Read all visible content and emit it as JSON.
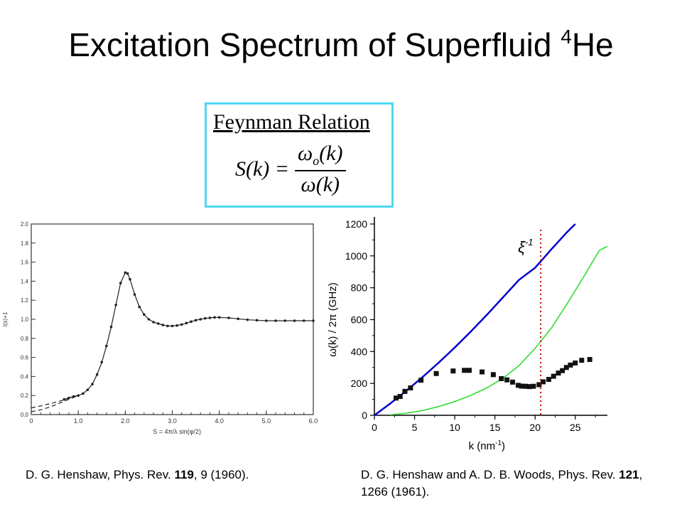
{
  "title": {
    "main": "Excitation Spectrum of Superfluid ",
    "sup": "4",
    "suffix": "He"
  },
  "feynman": {
    "label": "Feynman Relation",
    "lhs": "S(k) =",
    "num_main": "ω",
    "num_sub": "o",
    "num_arg": "(k)",
    "den": "ω(k)"
  },
  "captions": {
    "left": {
      "pre": "D. G. Henshaw, Phys. Rev. ",
      "bold": "119",
      "post": ", 9 (1960)."
    },
    "right": {
      "pre": "D. G. Henshaw and A. D. B. Woods, Phys. Rev. ",
      "bold": "121",
      "post": ", 1266 (1961)."
    }
  },
  "chart_data": [
    {
      "type": "line",
      "xlabel": "S = 4π/λ sin(φ/2)",
      "ylabel": "I(s)+1",
      "xlim": [
        0,
        6.0
      ],
      "ylim": [
        0,
        2.0
      ],
      "x_ticks": [
        "0",
        "1.0",
        "2.0",
        "3.0",
        "4.0",
        "5.0",
        "6.0"
      ],
      "y_ticks": [
        "0.0",
        "0.2",
        "0.4",
        "0.6",
        "0.8",
        "1.0",
        "1.2",
        "1.4",
        "1.6",
        "1.8",
        "2.0"
      ],
      "grid": false,
      "series": [
        {
          "style": "solid-with-dots",
          "points": [
            [
              0.7,
              0.16
            ],
            [
              0.8,
              0.175
            ],
            [
              0.9,
              0.19
            ],
            [
              1.0,
              0.2
            ],
            [
              1.1,
              0.22
            ],
            [
              1.2,
              0.26
            ],
            [
              1.3,
              0.32
            ],
            [
              1.4,
              0.42
            ],
            [
              1.5,
              0.55
            ],
            [
              1.6,
              0.72
            ],
            [
              1.7,
              0.92
            ],
            [
              1.8,
              1.15
            ],
            [
              1.9,
              1.38
            ],
            [
              2.0,
              1.49
            ],
            [
              2.05,
              1.48
            ],
            [
              2.1,
              1.42
            ],
            [
              2.2,
              1.26
            ],
            [
              2.3,
              1.13
            ],
            [
              2.4,
              1.05
            ],
            [
              2.5,
              1.0
            ],
            [
              2.6,
              0.97
            ],
            [
              2.7,
              0.955
            ],
            [
              2.8,
              0.94
            ],
            [
              2.9,
              0.93
            ],
            [
              3.0,
              0.93
            ],
            [
              3.1,
              0.935
            ],
            [
              3.2,
              0.945
            ],
            [
              3.3,
              0.96
            ],
            [
              3.4,
              0.975
            ],
            [
              3.5,
              0.99
            ],
            [
              3.6,
              1.0
            ],
            [
              3.7,
              1.01
            ],
            [
              3.8,
              1.015
            ],
            [
              3.9,
              1.02
            ],
            [
              4.0,
              1.02
            ],
            [
              4.2,
              1.015
            ],
            [
              4.4,
              1.005
            ],
            [
              4.6,
              0.995
            ],
            [
              4.8,
              0.99
            ],
            [
              5.0,
              0.985
            ],
            [
              5.2,
              0.985
            ],
            [
              5.4,
              0.985
            ],
            [
              5.6,
              0.985
            ],
            [
              5.8,
              0.985
            ],
            [
              6.0,
              0.985
            ]
          ]
        },
        {
          "style": "dashed",
          "points": [
            [
              0.0,
              0.03
            ],
            [
              0.2,
              0.05
            ],
            [
              0.4,
              0.08
            ],
            [
              0.6,
              0.12
            ],
            [
              0.8,
              0.16
            ],
            [
              1.0,
              0.2
            ]
          ]
        },
        {
          "style": "dashed",
          "points": [
            [
              0.0,
              0.07
            ],
            [
              0.2,
              0.09
            ],
            [
              0.4,
              0.115
            ],
            [
              0.6,
              0.14
            ],
            [
              0.8,
              0.17
            ],
            [
              1.0,
              0.2
            ]
          ]
        }
      ]
    },
    {
      "type": "scatter",
      "xlabel": "k (nm",
      "xlabel_sup": "-1",
      "xlabel_suffix": ")",
      "ylabel": "ω(k) / 2π (GHz)",
      "xlim": [
        0,
        29
      ],
      "ylim": [
        0,
        1200
      ],
      "x_ticks": [
        "0",
        "5",
        "10",
        "15",
        "20",
        "25"
      ],
      "y_ticks": [
        "0",
        "200",
        "400",
        "600",
        "800",
        "1000",
        "1200"
      ],
      "annotation": {
        "text": "ξ",
        "sup": "-1",
        "x": 20.7
      },
      "series": [
        {
          "name": "",
          "color": "#0000cc",
          "style": "line",
          "points": [
            [
              0,
              0
            ],
            [
              2,
              75
            ],
            [
              4,
              155
            ],
            [
              6,
              240
            ],
            [
              8,
              330
            ],
            [
              10,
              425
            ],
            [
              12,
              525
            ],
            [
              14,
              630
            ],
            [
              16,
              740
            ],
            [
              18,
              850
            ],
            [
              20,
              925
            ],
            [
              22,
              1040
            ],
            [
              24,
              1150
            ],
            [
              25,
              1200
            ]
          ]
        },
        {
          "name": "",
          "color": "#33dd33",
          "style": "line",
          "points": [
            [
              2,
              3
            ],
            [
              4,
              13
            ],
            [
              6,
              30
            ],
            [
              8,
              55
            ],
            [
              10,
              86
            ],
            [
              12,
              125
            ],
            [
              14,
              172
            ],
            [
              16,
              232
            ],
            [
              18,
              312
            ],
            [
              20,
              420
            ],
            [
              22,
              545
            ],
            [
              24,
              700
            ],
            [
              26,
              865
            ],
            [
              28,
              1035
            ],
            [
              29,
              1060
            ]
          ]
        },
        {
          "name": "",
          "color": "#111111",
          "style": "markers",
          "points": [
            [
              2.7,
              108
            ],
            [
              3.2,
              118
            ],
            [
              3.8,
              150
            ],
            [
              4.5,
              172
            ],
            [
              5.8,
              220
            ],
            [
              7.7,
              262
            ],
            [
              9.8,
              278
            ],
            [
              11.2,
              282
            ],
            [
              11.8,
              282
            ],
            [
              13.4,
              272
            ],
            [
              14.8,
              255
            ],
            [
              15.8,
              230
            ],
            [
              16.5,
              222
            ],
            [
              17.2,
              208
            ],
            [
              17.9,
              188
            ],
            [
              18.3,
              183
            ],
            [
              18.8,
              182
            ],
            [
              19.3,
              180
            ],
            [
              19.8,
              182
            ],
            [
              20.5,
              192
            ],
            [
              21.0,
              210
            ],
            [
              21.7,
              225
            ],
            [
              22.3,
              245
            ],
            [
              22.9,
              265
            ],
            [
              23.4,
              280
            ],
            [
              23.9,
              300
            ],
            [
              24.4,
              315
            ],
            [
              25.0,
              328
            ],
            [
              25.8,
              345
            ],
            [
              26.8,
              350
            ]
          ]
        }
      ]
    }
  ]
}
